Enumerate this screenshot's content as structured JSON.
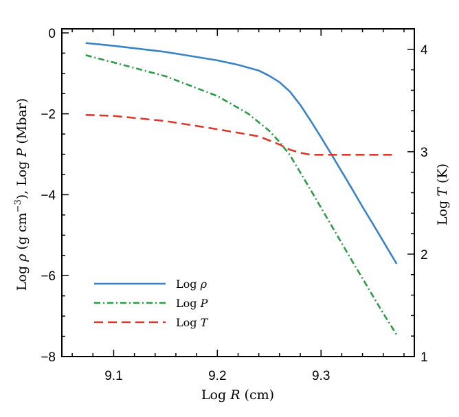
{
  "chart_data": {
    "type": "line",
    "xlabel": {
      "pre": "Log ",
      "var": "R",
      "post": " (cm)"
    },
    "ylabel_left": {
      "pre": "Log ",
      "v1": "ρ",
      "mid1": " (g cm",
      "sup": "−3",
      "mid2": "),  Log ",
      "v2": "P",
      "post": " (Mbar)"
    },
    "ylabel_right": {
      "pre": "Log ",
      "var": "T",
      "post": " (K)"
    },
    "xlim": [
      9.05,
      9.39
    ],
    "ylim_left": [
      -8,
      0.1
    ],
    "ylim_right": [
      1,
      4.2
    ],
    "x_ticks": [
      9.1,
      9.2,
      9.3
    ],
    "x_tick_labels": [
      "9.1",
      "9.2",
      "9.3"
    ],
    "y_left_ticks": [
      0,
      -2,
      -4,
      -6,
      -8
    ],
    "y_left_tick_labels": [
      "0",
      "−2",
      "−4",
      "−6",
      "−8"
    ],
    "y_right_ticks": [
      4,
      3,
      2,
      1
    ],
    "y_right_tick_labels": [
      "4",
      "3",
      "2",
      "1"
    ],
    "grid": false,
    "legend_position": "bottom-left",
    "series": [
      {
        "key": "rho",
        "name_pre": "Log ",
        "name_var": "ρ",
        "axis": "left",
        "color": "#3a82c6",
        "dash": "solid",
        "x": [
          9.073,
          9.1,
          9.15,
          9.2,
          9.22,
          9.24,
          9.25,
          9.26,
          9.27,
          9.28,
          9.29,
          9.3,
          9.31,
          9.32,
          9.33,
          9.34,
          9.35,
          9.36,
          9.373
        ],
        "y": [
          -0.25,
          -0.32,
          -0.47,
          -0.68,
          -0.79,
          -0.93,
          -1.06,
          -1.22,
          -1.45,
          -1.78,
          -2.17,
          -2.58,
          -3.0,
          -3.43,
          -3.86,
          -4.3,
          -4.72,
          -5.15,
          -5.71
        ]
      },
      {
        "key": "P",
        "name_pre": "Log ",
        "name_var": "P",
        "axis": "left",
        "color": "#2e9a46",
        "dash": "dashdot",
        "x": [
          9.073,
          9.1,
          9.15,
          9.2,
          9.23,
          9.25,
          9.26,
          9.27,
          9.28,
          9.29,
          9.3,
          9.31,
          9.32,
          9.33,
          9.34,
          9.35,
          9.36,
          9.373
        ],
        "y": [
          -0.55,
          -0.73,
          -1.07,
          -1.56,
          -2.0,
          -2.42,
          -2.7,
          -3.02,
          -3.45,
          -3.88,
          -4.32,
          -4.76,
          -5.2,
          -5.64,
          -6.07,
          -6.5,
          -6.93,
          -7.46
        ]
      },
      {
        "key": "T",
        "name_pre": "Log ",
        "name_var": "T",
        "axis": "right",
        "color": "#d93a2e",
        "dash": "dashed",
        "x": [
          9.073,
          9.1,
          9.15,
          9.2,
          9.24,
          9.26,
          9.27,
          9.28,
          9.29,
          9.3,
          9.31,
          9.34,
          9.373
        ],
        "y": [
          3.36,
          3.35,
          3.3,
          3.22,
          3.15,
          3.07,
          3.02,
          2.99,
          2.97,
          2.97,
          2.97,
          2.97,
          2.97
        ]
      }
    ]
  }
}
